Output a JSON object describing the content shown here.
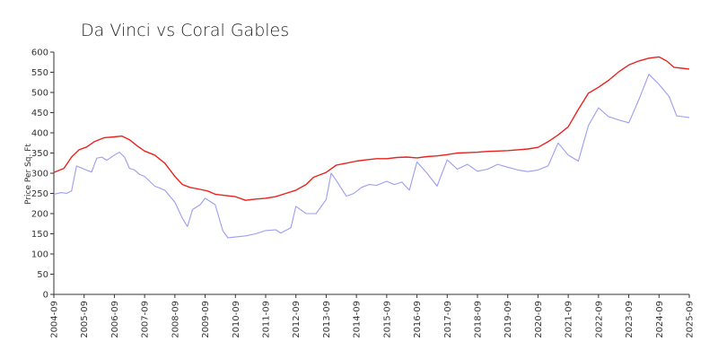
{
  "chart_data": {
    "type": "line",
    "title": "Da Vinci vs Coral Gables",
    "xlabel": "",
    "ylabel": "Price Per Sq. Ft",
    "ylim": [
      0,
      600
    ],
    "yticks": [
      0,
      50,
      100,
      150,
      200,
      250,
      300,
      350,
      400,
      450,
      500,
      550,
      600
    ],
    "x_start": "2004-09",
    "x_end": "2025-09",
    "xticks": [
      "2004-09",
      "2005-09",
      "2006-09",
      "2007-09",
      "2008-09",
      "2009-09",
      "2010-09",
      "2011-09",
      "2012-09",
      "2013-09",
      "2014-09",
      "2015-09",
      "2016-09",
      "2017-09",
      "2018-09",
      "2019-09",
      "2020-09",
      "2021-09",
      "2022-09",
      "2023-09",
      "2024-09",
      "2025-09"
    ],
    "grid": false,
    "legend": "none",
    "series": [
      {
        "color": "#e8231f",
        "points": [
          [
            "2004-09",
            302
          ],
          [
            "2005-01",
            312
          ],
          [
            "2005-04",
            340
          ],
          [
            "2005-07",
            358
          ],
          [
            "2005-10",
            365
          ],
          [
            "2006-01",
            378
          ],
          [
            "2006-05",
            388
          ],
          [
            "2006-09",
            390
          ],
          [
            "2006-12",
            392
          ],
          [
            "2007-03",
            383
          ],
          [
            "2007-06",
            368
          ],
          [
            "2007-09",
            355
          ],
          [
            "2008-01",
            345
          ],
          [
            "2008-05",
            325
          ],
          [
            "2008-09",
            292
          ],
          [
            "2008-12",
            272
          ],
          [
            "2009-03",
            265
          ],
          [
            "2009-07",
            260
          ],
          [
            "2009-10",
            256
          ],
          [
            "2010-01",
            248
          ],
          [
            "2010-05",
            245
          ],
          [
            "2010-09",
            242
          ],
          [
            "2011-01",
            233
          ],
          [
            "2011-05",
            236
          ],
          [
            "2011-09",
            238
          ],
          [
            "2012-01",
            242
          ],
          [
            "2012-05",
            250
          ],
          [
            "2012-09",
            258
          ],
          [
            "2013-01",
            272
          ],
          [
            "2013-04",
            290
          ],
          [
            "2013-09",
            302
          ],
          [
            "2014-01",
            320
          ],
          [
            "2014-05",
            325
          ],
          [
            "2014-09",
            330
          ],
          [
            "2015-01",
            333
          ],
          [
            "2015-05",
            336
          ],
          [
            "2015-09",
            336
          ],
          [
            "2016-01",
            339
          ],
          [
            "2016-05",
            340
          ],
          [
            "2016-09",
            338
          ],
          [
            "2017-01",
            341
          ],
          [
            "2017-05",
            343
          ],
          [
            "2017-09",
            346
          ],
          [
            "2018-01",
            350
          ],
          [
            "2018-05",
            351
          ],
          [
            "2018-09",
            352
          ],
          [
            "2019-01",
            354
          ],
          [
            "2019-05",
            355
          ],
          [
            "2019-09",
            356
          ],
          [
            "2020-01",
            358
          ],
          [
            "2020-05",
            360
          ],
          [
            "2020-09",
            364
          ],
          [
            "2021-01",
            378
          ],
          [
            "2021-05",
            395
          ],
          [
            "2021-09",
            415
          ],
          [
            "2022-01",
            458
          ],
          [
            "2022-05",
            498
          ],
          [
            "2022-09",
            513
          ],
          [
            "2023-01",
            530
          ],
          [
            "2023-05",
            551
          ],
          [
            "2023-09",
            568
          ],
          [
            "2024-01",
            578
          ],
          [
            "2024-05",
            585
          ],
          [
            "2024-09",
            588
          ],
          [
            "2024-12",
            578
          ],
          [
            "2025-03",
            562
          ],
          [
            "2025-06",
            560
          ],
          [
            "2025-09",
            558
          ]
        ]
      },
      {
        "color": "#9c9cf2",
        "points": [
          [
            "2004-09",
            248
          ],
          [
            "2004-12",
            252
          ],
          [
            "2005-02",
            250
          ],
          [
            "2005-04",
            256
          ],
          [
            "2005-06",
            318
          ],
          [
            "2005-09",
            310
          ],
          [
            "2005-12",
            303
          ],
          [
            "2006-02",
            337
          ],
          [
            "2006-04",
            340
          ],
          [
            "2006-06",
            332
          ],
          [
            "2006-09",
            345
          ],
          [
            "2006-11",
            352
          ],
          [
            "2007-01",
            340
          ],
          [
            "2007-03",
            312
          ],
          [
            "2007-05",
            308
          ],
          [
            "2007-07",
            297
          ],
          [
            "2007-09",
            292
          ],
          [
            "2008-01",
            268
          ],
          [
            "2008-05",
            258
          ],
          [
            "2008-09",
            228
          ],
          [
            "2008-12",
            188
          ],
          [
            "2009-02",
            168
          ],
          [
            "2009-04",
            210
          ],
          [
            "2009-07",
            222
          ],
          [
            "2009-09",
            238
          ],
          [
            "2010-01",
            222
          ],
          [
            "2010-04",
            158
          ],
          [
            "2010-06",
            140
          ],
          [
            "2010-09",
            142
          ],
          [
            "2011-01",
            145
          ],
          [
            "2011-05",
            150
          ],
          [
            "2011-09",
            158
          ],
          [
            "2012-01",
            160
          ],
          [
            "2012-03",
            152
          ],
          [
            "2012-07",
            165
          ],
          [
            "2012-09",
            218
          ],
          [
            "2013-01",
            200
          ],
          [
            "2013-05",
            200
          ],
          [
            "2013-09",
            235
          ],
          [
            "2013-11",
            300
          ],
          [
            "2014-01",
            282
          ],
          [
            "2014-05",
            243
          ],
          [
            "2014-08",
            250
          ],
          [
            "2014-11",
            265
          ],
          [
            "2015-02",
            272
          ],
          [
            "2015-05",
            270
          ],
          [
            "2015-09",
            280
          ],
          [
            "2015-12",
            272
          ],
          [
            "2016-03",
            278
          ],
          [
            "2016-06",
            258
          ],
          [
            "2016-09",
            328
          ],
          [
            "2017-01",
            300
          ],
          [
            "2017-05",
            268
          ],
          [
            "2017-09",
            333
          ],
          [
            "2018-01",
            310
          ],
          [
            "2018-05",
            322
          ],
          [
            "2018-09",
            305
          ],
          [
            "2019-01",
            310
          ],
          [
            "2019-05",
            322
          ],
          [
            "2019-09",
            315
          ],
          [
            "2020-01",
            308
          ],
          [
            "2020-05",
            304
          ],
          [
            "2020-09",
            308
          ],
          [
            "2021-01",
            318
          ],
          [
            "2021-05",
            375
          ],
          [
            "2021-09",
            345
          ],
          [
            "2022-01",
            330
          ],
          [
            "2022-05",
            418
          ],
          [
            "2022-09",
            462
          ],
          [
            "2023-01",
            440
          ],
          [
            "2023-05",
            432
          ],
          [
            "2023-09",
            425
          ],
          [
            "2024-01",
            482
          ],
          [
            "2024-05",
            545
          ],
          [
            "2024-09",
            520
          ],
          [
            "2025-01",
            490
          ],
          [
            "2025-04",
            442
          ],
          [
            "2025-09",
            438
          ]
        ]
      }
    ]
  }
}
